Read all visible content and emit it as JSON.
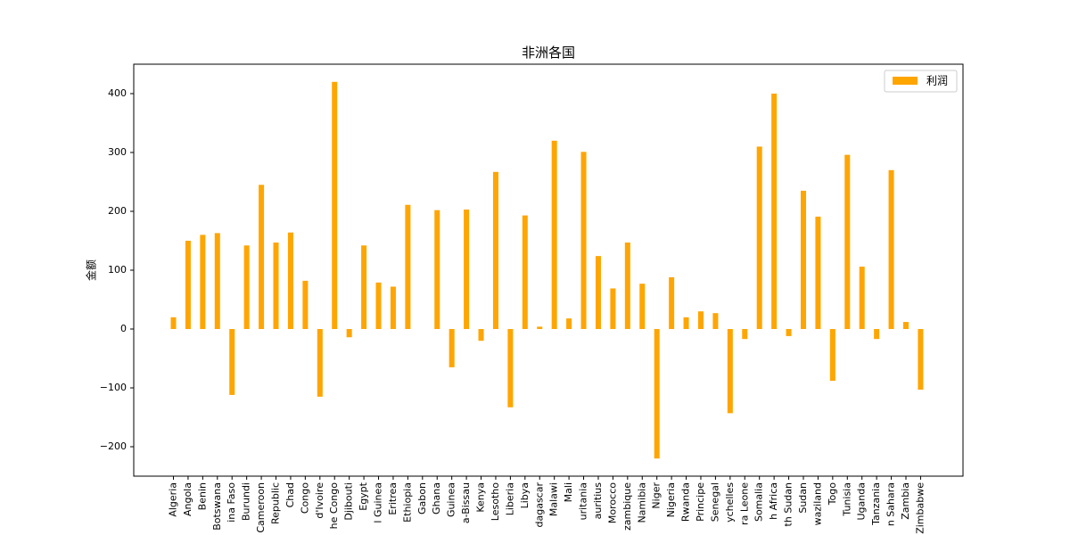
{
  "chart_data": {
    "type": "bar",
    "title": "非洲各国",
    "xlabel": "",
    "ylabel": "金额",
    "ylim": [
      -250,
      450
    ],
    "yticks": [
      -200,
      -100,
      0,
      100,
      200,
      300,
      400
    ],
    "grid": false,
    "legend_position": "top-right",
    "bar_color": "#ffa500",
    "categories": [
      "Algeria",
      "Angola",
      "Benin",
      "Botswana",
      "ina Faso",
      "Burundi",
      "Cameroon",
      "Republic",
      "Chad",
      "Congo",
      "d'Ivoire",
      "he Congo",
      "Djibouti",
      "Egypt",
      "l Guinea",
      "Eritrea",
      "Ethiopia",
      "Gabon",
      "Ghana",
      "Guinea",
      "a-Bissau",
      "Kenya",
      "Lesotho",
      "Liberia",
      "Libya",
      "dagascar",
      "Malawi",
      "Mali",
      "uritania",
      "auritius",
      "Morocco",
      "zambique",
      "Namibia",
      "Niger",
      "Nigeria",
      "Rwanda",
      "Principe",
      "Senegal",
      "ychelles",
      "ra Leone",
      "Somalia",
      "h Africa",
      "th Sudan",
      "Sudan",
      "waziland",
      "Togo",
      "Tunisia",
      "Uganda",
      "Tanzania",
      "n Sahara",
      "Zambia",
      "Zimbabwe"
    ],
    "series": [
      {
        "name": "利润",
        "values": [
          20,
          150,
          160,
          163,
          -112,
          142,
          245,
          147,
          164,
          82,
          -115,
          420,
          -14,
          142,
          79,
          72,
          211,
          0,
          202,
          -65,
          203,
          -20,
          267,
          -133,
          193,
          4,
          320,
          18,
          301,
          124,
          69,
          147,
          77,
          -220,
          88,
          20,
          30,
          27,
          -143,
          -17,
          310,
          400,
          -12,
          235,
          191,
          -88,
          296,
          106,
          -17,
          270,
          12,
          -103
        ]
      }
    ]
  }
}
